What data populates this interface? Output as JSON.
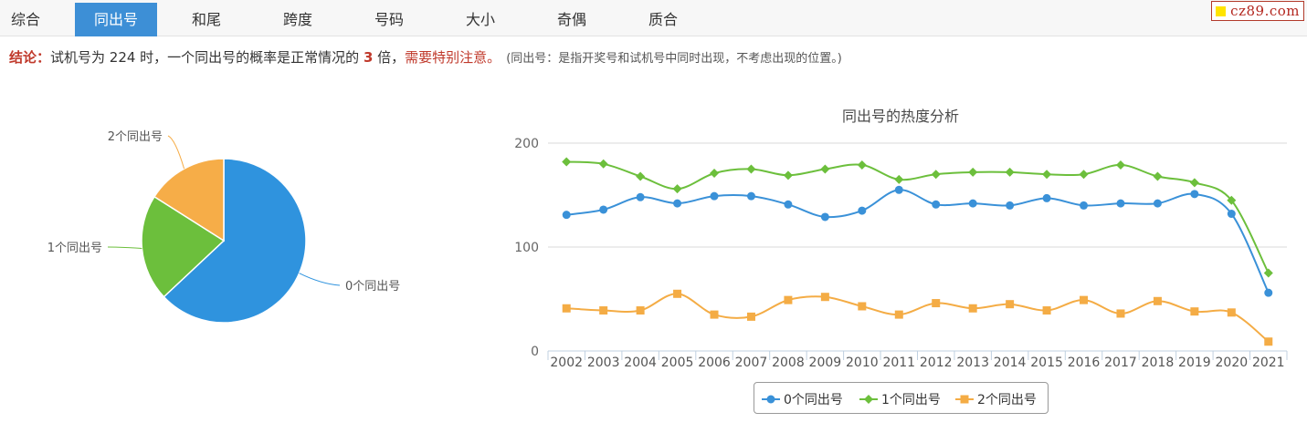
{
  "tabs": [
    {
      "label": "综合"
    },
    {
      "label": "同出号"
    },
    {
      "label": "和尾"
    },
    {
      "label": "跨度"
    },
    {
      "label": "号码"
    },
    {
      "label": "大小"
    },
    {
      "label": "奇偶"
    },
    {
      "label": "质合"
    }
  ],
  "active_tab": 1,
  "logo_text": "cz89.com",
  "conclusion": {
    "label": "结论：",
    "text1": "试机号为 224 时，一个同出号的概率是正常情况的 ",
    "multiplier": "3",
    "text2": " 倍，",
    "warning": "需要特别注意。",
    "note": "(同出号：是指开奖号和试机号中同时出现，不考虑出现的位置。)"
  },
  "colors": {
    "s0": "#3a91d8",
    "s1": "#6cbf3c",
    "s2": "#f4ac45",
    "active_tab": "#3d8fd6"
  },
  "chart_data": [
    {
      "type": "pie",
      "title": "",
      "labels": [
        "0个同出号",
        "1个同出号",
        "2个同出号"
      ],
      "values": [
        63,
        21,
        16
      ],
      "colors": [
        "#2f93de",
        "#6cbf3c",
        "#f6ad48"
      ]
    },
    {
      "type": "line",
      "title": "同出号的热度分析",
      "x": [
        "2002",
        "2003",
        "2004",
        "2005",
        "2006",
        "2007",
        "2008",
        "2009",
        "2010",
        "2011",
        "2012",
        "2013",
        "2014",
        "2015",
        "2016",
        "2017",
        "2018",
        "2019",
        "2020",
        "2021"
      ],
      "ylim": [
        0,
        200
      ],
      "yticks": [
        0,
        100,
        200
      ],
      "grid": true,
      "legend": "bottom",
      "series": [
        {
          "name": "0个同出号",
          "color": "#3a91d8",
          "marker": "circle",
          "values": [
            131,
            136,
            148,
            142,
            149,
            149,
            141,
            129,
            135,
            155,
            141,
            142,
            140,
            147,
            140,
            142,
            142,
            151,
            132,
            56
          ]
        },
        {
          "name": "1个同出号",
          "color": "#6cbf3c",
          "marker": "diamond",
          "values": [
            182,
            180,
            168,
            156,
            171,
            175,
            169,
            175,
            179,
            165,
            170,
            172,
            172,
            170,
            170,
            179,
            168,
            162,
            145,
            75
          ]
        },
        {
          "name": "2个同出号",
          "color": "#f4ac45",
          "marker": "square",
          "values": [
            41,
            39,
            39,
            55,
            35,
            33,
            49,
            52,
            43,
            35,
            46,
            41,
            45,
            39,
            49,
            36,
            48,
            38,
            37,
            9
          ]
        }
      ]
    }
  ]
}
